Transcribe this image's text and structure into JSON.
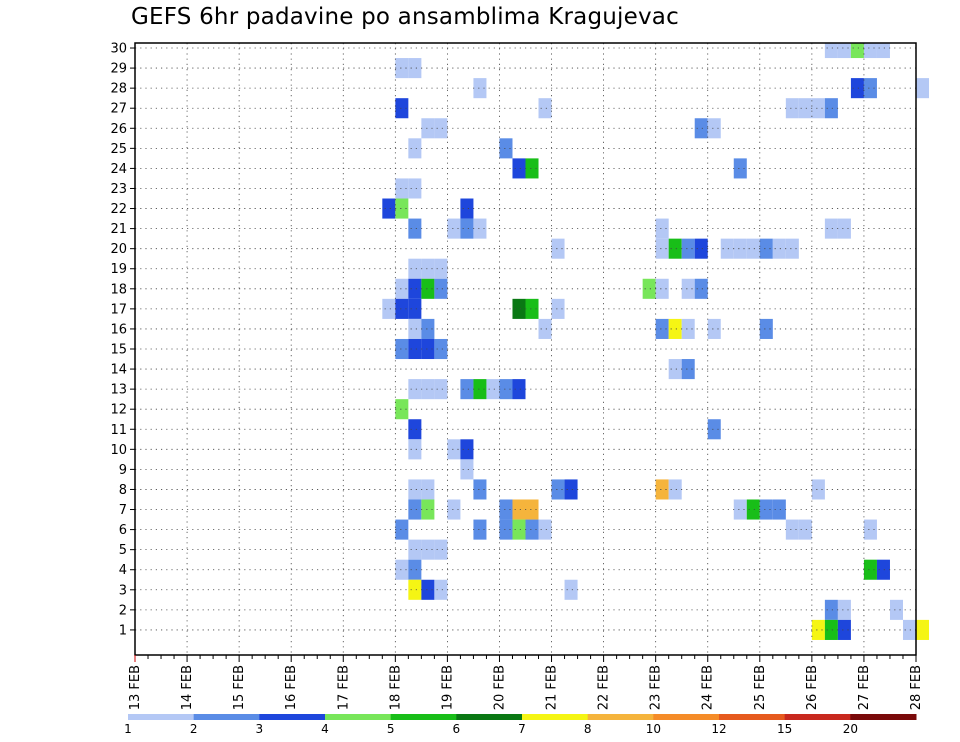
{
  "chart_data": {
    "type": "heatmap",
    "title": "GEFS 6hr padavine po ansamblima Kragujevac",
    "xlabel": "",
    "ylabel": "",
    "x_ticks": [
      "13 FEB",
      "14 FEB",
      "15 FEB",
      "16 FEB",
      "17 FEB",
      "18 FEB",
      "19 FEB",
      "20 FEB",
      "21 FEB",
      "22 FEB",
      "23 FEB",
      "24 FEB",
      "25 FEB",
      "26 FEB",
      "27 FEB",
      "28 FEB"
    ],
    "y_ticks": [
      "1",
      "2",
      "3",
      "4",
      "5",
      "6",
      "7",
      "8",
      "9",
      "10",
      "11",
      "12",
      "13",
      "14",
      "15",
      "16",
      "17",
      "18",
      "19",
      "20",
      "21",
      "22",
      "23",
      "24",
      "25",
      "26",
      "27",
      "28",
      "29",
      "30"
    ],
    "xlim": [
      "13 FEB 00Z",
      "28 FEB 00Z"
    ],
    "ylim": [
      0,
      30
    ],
    "grid": true,
    "legend": {
      "placement": "bottom",
      "labels": [
        "1",
        "2",
        "3",
        "4",
        "5",
        "6",
        "7",
        "8",
        "10",
        "12",
        "15",
        "20"
      ],
      "colors": [
        "#b4c8f5",
        "#5a8ce6",
        "#1e46dc",
        "#78e65a",
        "#18be18",
        "#0a7814",
        "#f5f514",
        "#f5b43c",
        "#f58c28",
        "#e65a1e",
        "#c8281e",
        "#7a0a0a"
      ]
    },
    "cells_note_units": "x in 6-hour steps after 13 FEB 00Z, y = ensemble member (0 = control), c = precipitation class index",
    "cells": [
      {
        "x": 53,
        "y": 30,
        "c": 0
      },
      {
        "x": 54,
        "y": 30,
        "c": 0
      },
      {
        "x": 55,
        "y": 30,
        "c": 3
      },
      {
        "x": 56,
        "y": 30,
        "c": 0
      },
      {
        "x": 57,
        "y": 30,
        "c": 0
      },
      {
        "x": 20,
        "y": 29,
        "c": 0
      },
      {
        "x": 21,
        "y": 29,
        "c": 0
      },
      {
        "x": 26,
        "y": 28,
        "c": 0
      },
      {
        "x": 55,
        "y": 28,
        "c": 2
      },
      {
        "x": 56,
        "y": 28,
        "c": 1
      },
      {
        "x": 60,
        "y": 28,
        "c": 0
      },
      {
        "x": 20,
        "y": 27,
        "c": 2
      },
      {
        "x": 31,
        "y": 27,
        "c": 0
      },
      {
        "x": 50,
        "y": 27,
        "c": 0
      },
      {
        "x": 51,
        "y": 27,
        "c": 0
      },
      {
        "x": 52,
        "y": 27,
        "c": 0
      },
      {
        "x": 53,
        "y": 27,
        "c": 1
      },
      {
        "x": 22,
        "y": 26,
        "c": 0
      },
      {
        "x": 23,
        "y": 26,
        "c": 0
      },
      {
        "x": 43,
        "y": 26,
        "c": 1
      },
      {
        "x": 44,
        "y": 26,
        "c": 0
      },
      {
        "x": 21,
        "y": 25,
        "c": 0
      },
      {
        "x": 28,
        "y": 25,
        "c": 1
      },
      {
        "x": 29,
        "y": 24,
        "c": 2
      },
      {
        "x": 30,
        "y": 24,
        "c": 4
      },
      {
        "x": 46,
        "y": 24,
        "c": 1
      },
      {
        "x": 20,
        "y": 23,
        "c": 0
      },
      {
        "x": 21,
        "y": 23,
        "c": 0
      },
      {
        "x": 19,
        "y": 22,
        "c": 2
      },
      {
        "x": 20,
        "y": 22,
        "c": 3
      },
      {
        "x": 25,
        "y": 22,
        "c": 2
      },
      {
        "x": 21,
        "y": 21,
        "c": 1
      },
      {
        "x": 24,
        "y": 21,
        "c": 0
      },
      {
        "x": 25,
        "y": 21,
        "c": 1
      },
      {
        "x": 26,
        "y": 21,
        "c": 0
      },
      {
        "x": 40,
        "y": 21,
        "c": 0
      },
      {
        "x": 53,
        "y": 21,
        "c": 0
      },
      {
        "x": 54,
        "y": 21,
        "c": 0
      },
      {
        "x": 32,
        "y": 20,
        "c": 0
      },
      {
        "x": 40,
        "y": 20,
        "c": 0
      },
      {
        "x": 41,
        "y": 20,
        "c": 4
      },
      {
        "x": 42,
        "y": 20,
        "c": 1
      },
      {
        "x": 43,
        "y": 20,
        "c": 2
      },
      {
        "x": 45,
        "y": 20,
        "c": 0
      },
      {
        "x": 46,
        "y": 20,
        "c": 0
      },
      {
        "x": 47,
        "y": 20,
        "c": 0
      },
      {
        "x": 48,
        "y": 20,
        "c": 1
      },
      {
        "x": 49,
        "y": 20,
        "c": 0
      },
      {
        "x": 50,
        "y": 20,
        "c": 0
      },
      {
        "x": 21,
        "y": 19,
        "c": 0
      },
      {
        "x": 22,
        "y": 19,
        "c": 0
      },
      {
        "x": 23,
        "y": 19,
        "c": 0
      },
      {
        "x": 20,
        "y": 18,
        "c": 0
      },
      {
        "x": 21,
        "y": 18,
        "c": 2
      },
      {
        "x": 22,
        "y": 18,
        "c": 4
      },
      {
        "x": 23,
        "y": 18,
        "c": 1
      },
      {
        "x": 39,
        "y": 18,
        "c": 3
      },
      {
        "x": 40,
        "y": 18,
        "c": 0
      },
      {
        "x": 42,
        "y": 18,
        "c": 0
      },
      {
        "x": 43,
        "y": 18,
        "c": 1
      },
      {
        "x": 19,
        "y": 17,
        "c": 0
      },
      {
        "x": 20,
        "y": 17,
        "c": 2
      },
      {
        "x": 21,
        "y": 17,
        "c": 2
      },
      {
        "x": 29,
        "y": 17,
        "c": 5
      },
      {
        "x": 30,
        "y": 17,
        "c": 4
      },
      {
        "x": 32,
        "y": 17,
        "c": 0
      },
      {
        "x": 21,
        "y": 16,
        "c": 0
      },
      {
        "x": 22,
        "y": 16,
        "c": 1
      },
      {
        "x": 31,
        "y": 16,
        "c": 0
      },
      {
        "x": 40,
        "y": 16,
        "c": 1
      },
      {
        "x": 41,
        "y": 16,
        "c": 6
      },
      {
        "x": 42,
        "y": 16,
        "c": 0
      },
      {
        "x": 44,
        "y": 16,
        "c": 0
      },
      {
        "x": 48,
        "y": 16,
        "c": 1
      },
      {
        "x": 20,
        "y": 15,
        "c": 1
      },
      {
        "x": 21,
        "y": 15,
        "c": 2
      },
      {
        "x": 22,
        "y": 15,
        "c": 2
      },
      {
        "x": 23,
        "y": 15,
        "c": 1
      },
      {
        "x": 41,
        "y": 14,
        "c": 0
      },
      {
        "x": 42,
        "y": 14,
        "c": 1
      },
      {
        "x": 21,
        "y": 13,
        "c": 0
      },
      {
        "x": 22,
        "y": 13,
        "c": 0
      },
      {
        "x": 23,
        "y": 13,
        "c": 0
      },
      {
        "x": 25,
        "y": 13,
        "c": 1
      },
      {
        "x": 26,
        "y": 13,
        "c": 4
      },
      {
        "x": 27,
        "y": 13,
        "c": 0
      },
      {
        "x": 28,
        "y": 13,
        "c": 1
      },
      {
        "x": 29,
        "y": 13,
        "c": 2
      },
      {
        "x": 20,
        "y": 12,
        "c": 3
      },
      {
        "x": 21,
        "y": 11,
        "c": 2
      },
      {
        "x": 44,
        "y": 11,
        "c": 1
      },
      {
        "x": 21,
        "y": 10,
        "c": 0
      },
      {
        "x": 24,
        "y": 10,
        "c": 0
      },
      {
        "x": 25,
        "y": 10,
        "c": 2
      },
      {
        "x": 25,
        "y": 9,
        "c": 0
      },
      {
        "x": 21,
        "y": 8,
        "c": 0
      },
      {
        "x": 22,
        "y": 8,
        "c": 0
      },
      {
        "x": 26,
        "y": 8,
        "c": 1
      },
      {
        "x": 32,
        "y": 8,
        "c": 1
      },
      {
        "x": 33,
        "y": 8,
        "c": 2
      },
      {
        "x": 40,
        "y": 8,
        "c": 7
      },
      {
        "x": 41,
        "y": 8,
        "c": 0
      },
      {
        "x": 52,
        "y": 8,
        "c": 0
      },
      {
        "x": 21,
        "y": 7,
        "c": 1
      },
      {
        "x": 22,
        "y": 7,
        "c": 3
      },
      {
        "x": 24,
        "y": 7,
        "c": 0
      },
      {
        "x": 28,
        "y": 7,
        "c": 1
      },
      {
        "x": 29,
        "y": 7,
        "c": 7
      },
      {
        "x": 30,
        "y": 7,
        "c": 7
      },
      {
        "x": 46,
        "y": 7,
        "c": 0
      },
      {
        "x": 47,
        "y": 7,
        "c": 4
      },
      {
        "x": 48,
        "y": 7,
        "c": 1
      },
      {
        "x": 49,
        "y": 7,
        "c": 1
      },
      {
        "x": 20,
        "y": 6,
        "c": 1
      },
      {
        "x": 26,
        "y": 6,
        "c": 1
      },
      {
        "x": 28,
        "y": 6,
        "c": 1
      },
      {
        "x": 29,
        "y": 6,
        "c": 3
      },
      {
        "x": 30,
        "y": 6,
        "c": 1
      },
      {
        "x": 31,
        "y": 6,
        "c": 0
      },
      {
        "x": 50,
        "y": 6,
        "c": 0
      },
      {
        "x": 51,
        "y": 6,
        "c": 0
      },
      {
        "x": 56,
        "y": 6,
        "c": 0
      },
      {
        "x": 21,
        "y": 5,
        "c": 0
      },
      {
        "x": 22,
        "y": 5,
        "c": 0
      },
      {
        "x": 23,
        "y": 5,
        "c": 0
      },
      {
        "x": 20,
        "y": 4,
        "c": 0
      },
      {
        "x": 21,
        "y": 4,
        "c": 1
      },
      {
        "x": 56,
        "y": 4,
        "c": 4
      },
      {
        "x": 57,
        "y": 4,
        "c": 2
      },
      {
        "x": 21,
        "y": 3,
        "c": 6
      },
      {
        "x": 22,
        "y": 3,
        "c": 2
      },
      {
        "x": 23,
        "y": 3,
        "c": 0
      },
      {
        "x": 33,
        "y": 3,
        "c": 0
      },
      {
        "x": 53,
        "y": 2,
        "c": 1
      },
      {
        "x": 54,
        "y": 2,
        "c": 0
      },
      {
        "x": 58,
        "y": 2,
        "c": 0
      },
      {
        "x": 52,
        "y": 1,
        "c": 6
      },
      {
        "x": 53,
        "y": 1,
        "c": 4
      },
      {
        "x": 54,
        "y": 1,
        "c": 2
      },
      {
        "x": 59,
        "y": 1,
        "c": 0
      },
      {
        "x": 60,
        "y": 1,
        "c": 6
      }
    ]
  }
}
